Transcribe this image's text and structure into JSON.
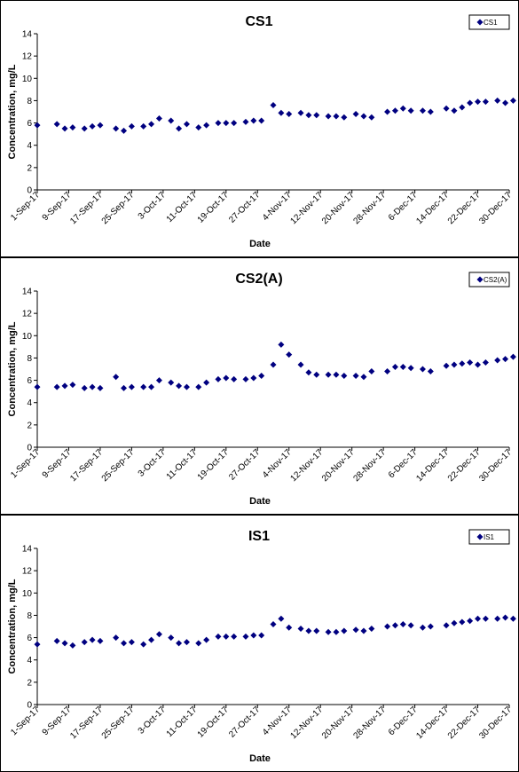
{
  "chart_data": [
    {
      "type": "scatter",
      "title": "CS1",
      "xlabel": "Date",
      "ylabel": "Concentration, mg/L",
      "ylim": [
        0,
        14
      ],
      "yticks": [
        0,
        2,
        4,
        6,
        8,
        10,
        12,
        14
      ],
      "xlim": [
        "2017-09-01",
        "2017-12-30"
      ],
      "xticks": [
        "1-Sep-17",
        "9-Sep-17",
        "17-Sep-17",
        "25-Sep-17",
        "3-Oct-17",
        "11-Oct-17",
        "19-Oct-17",
        "27-Oct-17",
        "4-Nov-17",
        "12-Nov-17",
        "20-Nov-17",
        "28-Nov-17",
        "6-Dec-17",
        "14-Dec-17",
        "22-Dec-17",
        "30-Dec-17"
      ],
      "legend_position": "top-right",
      "marker_color": "#000080",
      "grid": false,
      "series": [
        {
          "name": "CS1",
          "x": [
            "2017-09-01",
            "2017-09-06",
            "2017-09-08",
            "2017-09-10",
            "2017-09-13",
            "2017-09-15",
            "2017-09-17",
            "2017-09-21",
            "2017-09-23",
            "2017-09-25",
            "2017-09-28",
            "2017-09-30",
            "2017-10-02",
            "2017-10-05",
            "2017-10-07",
            "2017-10-09",
            "2017-10-12",
            "2017-10-14",
            "2017-10-17",
            "2017-10-19",
            "2017-10-21",
            "2017-10-24",
            "2017-10-26",
            "2017-10-28",
            "2017-10-31",
            "2017-11-02",
            "2017-11-04",
            "2017-11-07",
            "2017-11-09",
            "2017-11-11",
            "2017-11-14",
            "2017-11-16",
            "2017-11-18",
            "2017-11-21",
            "2017-11-23",
            "2017-11-25",
            "2017-11-29",
            "2017-12-01",
            "2017-12-03",
            "2017-12-05",
            "2017-12-08",
            "2017-12-10",
            "2017-12-14",
            "2017-12-16",
            "2017-12-18",
            "2017-12-20",
            "2017-12-22",
            "2017-12-24",
            "2017-12-27",
            "2017-12-29",
            "2017-12-31"
          ],
          "y": [
            5.8,
            5.9,
            5.5,
            5.6,
            5.5,
            5.7,
            5.8,
            5.5,
            5.3,
            5.7,
            5.7,
            5.9,
            6.4,
            6.2,
            5.5,
            5.9,
            5.6,
            5.8,
            6.0,
            6.0,
            6.0,
            6.1,
            6.2,
            6.2,
            7.6,
            6.9,
            6.8,
            6.9,
            6.7,
            6.7,
            6.6,
            6.6,
            6.5,
            6.8,
            6.6,
            6.5,
            7.0,
            7.1,
            7.3,
            7.1,
            7.1,
            7.0,
            7.3,
            7.1,
            7.4,
            7.8,
            7.9,
            7.9,
            8.0,
            7.8,
            8.0
          ]
        }
      ]
    },
    {
      "type": "scatter",
      "title": "CS2(A)",
      "xlabel": "Date",
      "ylabel": "Concentration, mg/L",
      "ylim": [
        0,
        14
      ],
      "yticks": [
        0,
        2,
        4,
        6,
        8,
        10,
        12,
        14
      ],
      "xlim": [
        "2017-09-01",
        "2017-12-30"
      ],
      "xticks": [
        "1-Sep-17",
        "9-Sep-17",
        "17-Sep-17",
        "25-Sep-17",
        "3-Oct-17",
        "11-Oct-17",
        "19-Oct-17",
        "27-Oct-17",
        "4-Nov-17",
        "12-Nov-17",
        "20-Nov-17",
        "28-Nov-17",
        "6-Dec-17",
        "14-Dec-17",
        "22-Dec-17",
        "30-Dec-17"
      ],
      "legend_position": "top-right",
      "marker_color": "#000080",
      "grid": false,
      "series": [
        {
          "name": "CS2(A)",
          "x": [
            "2017-09-01",
            "2017-09-06",
            "2017-09-08",
            "2017-09-10",
            "2017-09-13",
            "2017-09-15",
            "2017-09-17",
            "2017-09-21",
            "2017-09-23",
            "2017-09-25",
            "2017-09-28",
            "2017-09-30",
            "2017-10-02",
            "2017-10-05",
            "2017-10-07",
            "2017-10-09",
            "2017-10-12",
            "2017-10-14",
            "2017-10-17",
            "2017-10-19",
            "2017-10-21",
            "2017-10-24",
            "2017-10-26",
            "2017-10-28",
            "2017-10-31",
            "2017-11-02",
            "2017-11-04",
            "2017-11-07",
            "2017-11-09",
            "2017-11-11",
            "2017-11-14",
            "2017-11-16",
            "2017-11-18",
            "2017-11-21",
            "2017-11-23",
            "2017-11-25",
            "2017-11-29",
            "2017-12-01",
            "2017-12-03",
            "2017-12-05",
            "2017-12-08",
            "2017-12-10",
            "2017-12-14",
            "2017-12-16",
            "2017-12-18",
            "2017-12-20",
            "2017-12-22",
            "2017-12-24",
            "2017-12-27",
            "2017-12-29",
            "2017-12-31"
          ],
          "y": [
            5.4,
            5.4,
            5.5,
            5.6,
            5.3,
            5.4,
            5.3,
            6.3,
            5.3,
            5.4,
            5.4,
            5.4,
            6.0,
            5.8,
            5.5,
            5.4,
            5.4,
            5.8,
            6.1,
            6.2,
            6.1,
            6.1,
            6.2,
            6.4,
            7.4,
            9.2,
            8.3,
            7.4,
            6.7,
            6.5,
            6.5,
            6.5,
            6.4,
            6.4,
            6.3,
            6.8,
            6.8,
            7.2,
            7.2,
            7.1,
            7.0,
            6.8,
            7.3,
            7.4,
            7.5,
            7.6,
            7.4,
            7.6,
            7.8,
            7.9,
            8.1
          ]
        }
      ]
    },
    {
      "type": "scatter",
      "title": "IS1",
      "xlabel": "Date",
      "ylabel": "Concentration, mg/L",
      "ylim": [
        0,
        14
      ],
      "yticks": [
        0,
        2,
        4,
        6,
        8,
        10,
        12,
        14
      ],
      "xlim": [
        "2017-09-01",
        "2017-12-30"
      ],
      "xticks": [
        "1-Sep-17",
        "9-Sep-17",
        "17-Sep-17",
        "25-Sep-17",
        "3-Oct-17",
        "11-Oct-17",
        "19-Oct-17",
        "27-Oct-17",
        "4-Nov-17",
        "12-Nov-17",
        "20-Nov-17",
        "28-Nov-17",
        "6-Dec-17",
        "14-Dec-17",
        "22-Dec-17",
        "30-Dec-17"
      ],
      "legend_position": "top-right",
      "marker_color": "#000080",
      "grid": false,
      "series": [
        {
          "name": "IS1",
          "x": [
            "2017-09-01",
            "2017-09-06",
            "2017-09-08",
            "2017-09-10",
            "2017-09-13",
            "2017-09-15",
            "2017-09-17",
            "2017-09-21",
            "2017-09-23",
            "2017-09-25",
            "2017-09-28",
            "2017-09-30",
            "2017-10-02",
            "2017-10-05",
            "2017-10-07",
            "2017-10-09",
            "2017-10-12",
            "2017-10-14",
            "2017-10-17",
            "2017-10-19",
            "2017-10-21",
            "2017-10-24",
            "2017-10-26",
            "2017-10-28",
            "2017-10-31",
            "2017-11-02",
            "2017-11-04",
            "2017-11-07",
            "2017-11-09",
            "2017-11-11",
            "2017-11-14",
            "2017-11-16",
            "2017-11-18",
            "2017-11-21",
            "2017-11-23",
            "2017-11-25",
            "2017-11-29",
            "2017-12-01",
            "2017-12-03",
            "2017-12-05",
            "2017-12-08",
            "2017-12-10",
            "2017-12-14",
            "2017-12-16",
            "2017-12-18",
            "2017-12-20",
            "2017-12-22",
            "2017-12-24",
            "2017-12-27",
            "2017-12-29",
            "2017-12-31"
          ],
          "y": [
            5.4,
            5.7,
            5.5,
            5.3,
            5.6,
            5.8,
            5.7,
            6.0,
            5.5,
            5.6,
            5.4,
            5.8,
            6.3,
            6.0,
            5.5,
            5.6,
            5.5,
            5.8,
            6.1,
            6.1,
            6.1,
            6.1,
            6.2,
            6.2,
            7.2,
            7.7,
            6.9,
            6.8,
            6.6,
            6.6,
            6.5,
            6.5,
            6.6,
            6.7,
            6.6,
            6.8,
            7.0,
            7.1,
            7.2,
            7.1,
            6.9,
            7.0,
            7.1,
            7.3,
            7.4,
            7.5,
            7.7,
            7.7,
            7.7,
            7.8,
            7.7
          ]
        }
      ]
    }
  ]
}
